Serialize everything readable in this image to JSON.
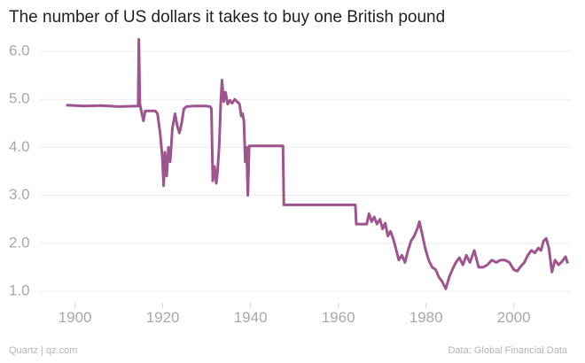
{
  "chart_data": {
    "type": "line",
    "title": "The number of US dollars it takes to buy one British pound",
    "credit": "Quartz | qz.com",
    "source": "Data: Global Financial Data",
    "x": [
      1898,
      1902,
      1906,
      1910,
      1914.4,
      1914.55,
      1914.8,
      1915.2,
      1915.6,
      1916,
      1918.3,
      1918.8,
      1919.4,
      1919.9,
      1920.2,
      1920.5,
      1920.9,
      1921.3,
      1921.7,
      1922.2,
      1922.8,
      1923.3,
      1923.8,
      1924.3,
      1924.8,
      1925.4,
      1927,
      1930,
      1930.8,
      1931.1,
      1931.4,
      1931.8,
      1932.2,
      1932.5,
      1932.9,
      1933.2,
      1933.5,
      1933.9,
      1934.3,
      1934.8,
      1935.3,
      1935.8,
      1936.4,
      1937,
      1937.5,
      1937.9,
      1938.2,
      1938.5,
      1938.8,
      1939.1,
      1939.4,
      1939.7,
      1940.2,
      1947.4,
      1947.6,
      1950,
      1955,
      1960,
      1963.9,
      1964.1,
      1966.5,
      1967,
      1967.6,
      1968.2,
      1968.8,
      1969.5,
      1970.1,
      1970.7,
      1971.3,
      1971.9,
      1972.5,
      1973.1,
      1973.8,
      1974.5,
      1975.2,
      1975.9,
      1976.6,
      1977.3,
      1978,
      1978.5,
      1979.1,
      1979.8,
      1980.6,
      1981.4,
      1982.2,
      1982.9,
      1983.7,
      1984.5,
      1985.3,
      1986,
      1986.8,
      1987.6,
      1988.4,
      1989.2,
      1990,
      1991,
      1992,
      1993,
      1994,
      1995,
      1996,
      1997,
      1998,
      1999,
      2000,
      2000.8,
      2001.6,
      2002.4,
      2003.2,
      2004,
      2004.8,
      2005.6,
      2006.2,
      2006.8,
      2007.4,
      2008,
      2008.7,
      2009.4,
      2010.2,
      2011,
      2011.8,
      2012.3
    ],
    "series": [
      {
        "color": "#9e558f",
        "values": [
          4.88,
          4.86,
          4.87,
          4.85,
          4.86,
          6.25,
          4.9,
          4.72,
          4.55,
          4.76,
          4.76,
          4.7,
          4.3,
          3.8,
          3.2,
          3.9,
          3.4,
          4.0,
          3.7,
          4.4,
          4.7,
          4.45,
          4.3,
          4.5,
          4.8,
          4.85,
          4.86,
          4.86,
          4.85,
          4.8,
          3.3,
          3.6,
          3.25,
          3.5,
          4.1,
          4.9,
          5.4,
          4.95,
          5.15,
          4.9,
          4.98,
          4.92,
          5.0,
          4.95,
          4.9,
          4.65,
          4.7,
          4.55,
          3.7,
          4.0,
          3.0,
          4.03,
          4.03,
          4.03,
          2.8,
          2.8,
          2.8,
          2.8,
          2.8,
          2.4,
          2.4,
          2.62,
          2.45,
          2.55,
          2.4,
          2.5,
          2.3,
          2.42,
          2.15,
          2.25,
          2.1,
          1.9,
          1.65,
          1.75,
          1.6,
          1.85,
          2.05,
          2.15,
          2.3,
          2.45,
          2.2,
          1.9,
          1.65,
          1.5,
          1.45,
          1.3,
          1.2,
          1.05,
          1.3,
          1.45,
          1.6,
          1.7,
          1.55,
          1.75,
          1.6,
          1.85,
          1.5,
          1.5,
          1.55,
          1.65,
          1.6,
          1.65,
          1.65,
          1.6,
          1.45,
          1.42,
          1.52,
          1.6,
          1.75,
          1.85,
          1.8,
          1.9,
          1.85,
          2.05,
          2.1,
          1.9,
          1.4,
          1.65,
          1.55,
          1.62,
          1.72,
          1.58
        ]
      }
    ],
    "xlim": [
      1892,
      2013
    ],
    "ylim": [
      0.75,
      6.25
    ],
    "xticks": [
      1900,
      1920,
      1940,
      1960,
      1980,
      2000
    ],
    "yticks": [
      {
        "value": 1,
        "label": "1.0"
      },
      {
        "value": 2,
        "label": "2.0"
      },
      {
        "value": 3,
        "label": "3.0"
      },
      {
        "value": 4,
        "label": "4.0"
      },
      {
        "value": 5,
        "label": "5.0"
      },
      {
        "value": 6,
        "label": "6.0"
      }
    ],
    "grid": true
  }
}
